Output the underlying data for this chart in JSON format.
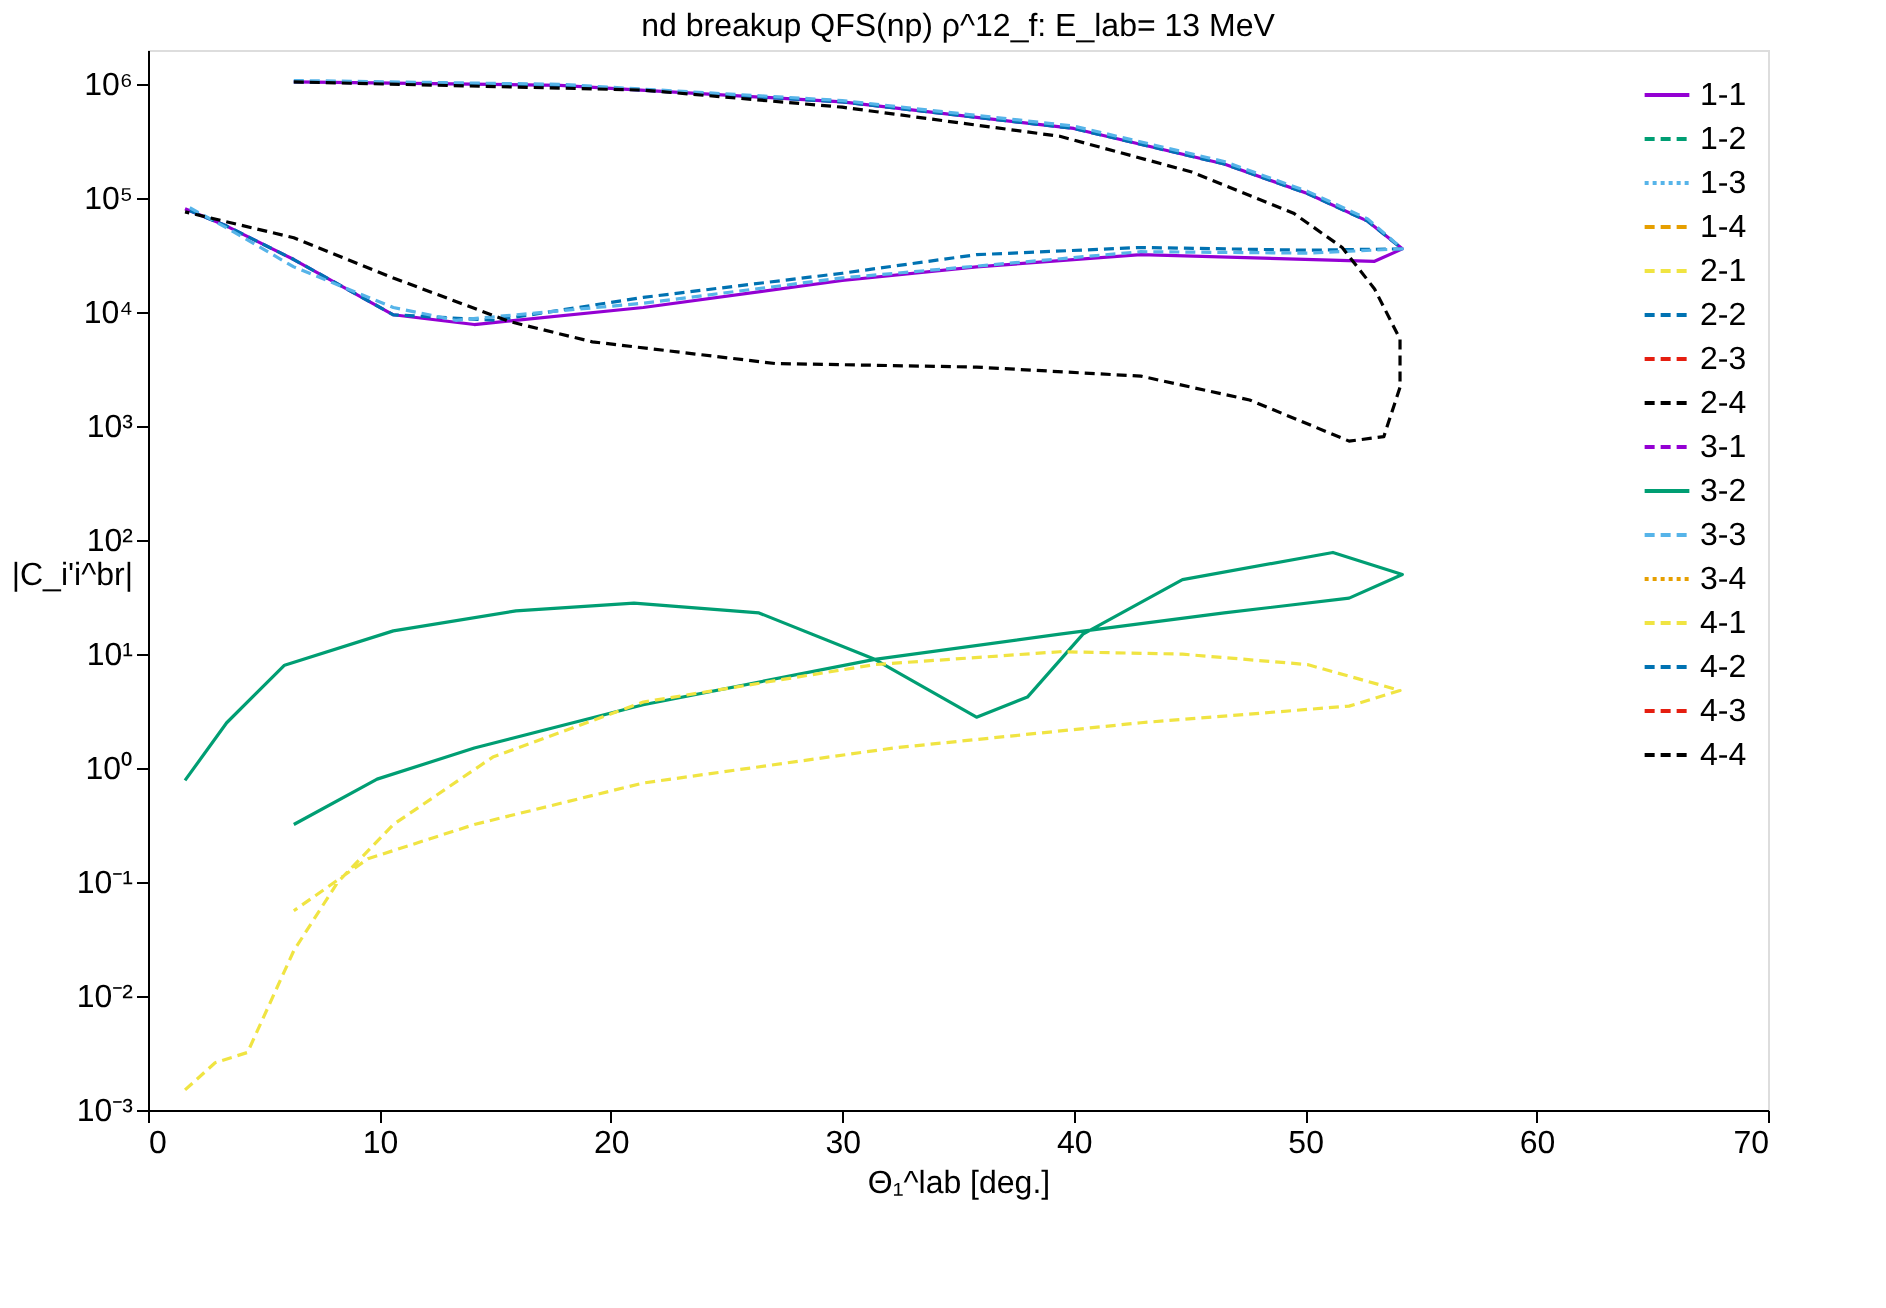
{
  "chart_data": {
    "type": "line",
    "title": "nd breakup QFS(np) ρ^12_f: E_lab=   13 MeV",
    "xlabel": "Θ₁^lab [deg.]",
    "ylabel": "|C_i'i^br|",
    "xlim": [
      0,
      70
    ],
    "xticks": [
      0,
      10,
      20,
      30,
      40,
      50,
      60,
      70
    ],
    "ylim": [
      0.001,
      2000000
    ],
    "log": "y",
    "yticks": [
      {
        "value": 0.001,
        "label": "10⁻³"
      },
      {
        "value": 0.01,
        "label": "10⁻²"
      },
      {
        "value": 0.1,
        "label": "10⁻¹"
      },
      {
        "value": 1,
        "label": "10⁰"
      },
      {
        "value": 10,
        "label": "10¹"
      },
      {
        "value": 100,
        "label": "10²"
      },
      {
        "value": 1000,
        "label": "10³"
      },
      {
        "value": 10000,
        "label": "10⁴"
      },
      {
        "value": 100000,
        "label": "10⁵"
      },
      {
        "value": 1000000,
        "label": "10⁶"
      }
    ],
    "grid": false,
    "legend": "top right",
    "marker": "none",
    "series": [
      {
        "name": "1-1",
        "color": "#9400d3",
        "line_style": "solid",
        "x": [
          6.3,
          17.8,
          30,
          40,
          46.5,
          50.1,
          52.7,
          54.2,
          53,
          42.9,
          35.8,
          30,
          21.4,
          14.1,
          10.6,
          6.3,
          3.4,
          1.6
        ],
        "values": [
          1050000,
          980000,
          700000,
          410000,
          200000,
          110000,
          63000,
          36000,
          28000,
          32000,
          25000,
          19000,
          11000,
          7800,
          9500,
          29000,
          57000,
          81000
        ]
      },
      {
        "name": "1-2",
        "color": "#009e73",
        "line_style": "dashed"
      },
      {
        "name": "1-3",
        "color": "#56b4e9",
        "line_style": "dotted"
      },
      {
        "name": "1-4",
        "color": "#e69f00",
        "line_style": "dashed"
      },
      {
        "name": "2-1",
        "color": "#f0e442",
        "line_style": "dashed"
      },
      {
        "name": "2-2",
        "color": "#0072b2",
        "line_style": "dashed",
        "x": [
          6.3,
          17.8,
          30,
          40,
          46.5,
          50.1,
          52.7,
          54.2,
          50.1,
          42.9,
          35.8,
          30,
          21.4,
          15,
          10.6,
          6.3,
          3.4,
          1.6
        ],
        "values": [
          1050000,
          980000,
          700000,
          410000,
          200000,
          110000,
          63000,
          36000,
          35000,
          37000,
          32000,
          22000,
          13500,
          8500,
          9500,
          29000,
          57000,
          81000
        ]
      },
      {
        "name": "2-3",
        "color": "#e51e10",
        "line_style": "dashed"
      },
      {
        "name": "2-4",
        "color": "#000000",
        "line_style": "dashed"
      },
      {
        "name": "3-1",
        "color": "#9400d3",
        "line_style": "dashed"
      },
      {
        "name": "3-2",
        "color": "#009e73",
        "line_style": "solid",
        "x": [
          1.6,
          3.4,
          5.9,
          10.6,
          15.9,
          21,
          26.4,
          31.4,
          35.8,
          38,
          40.4,
          44.7,
          51.2,
          54.2,
          51.9,
          46.5,
          39.4,
          31.4,
          21.4,
          14.1,
          9.9,
          6.3
        ],
        "values": [
          0.78,
          2.5,
          8,
          16,
          24,
          28,
          23,
          9,
          2.8,
          4.2,
          15,
          45,
          78,
          50,
          31,
          23,
          15,
          9,
          3.6,
          1.5,
          0.8,
          0.32
        ]
      },
      {
        "name": "3-3",
        "color": "#56b4e9",
        "line_style": "dashed",
        "x": [
          6.3,
          17.8,
          30,
          40,
          46.5,
          50.1,
          52.7,
          54.2,
          50.1,
          42.9,
          30,
          21.4,
          13.3,
          10.6,
          6.3,
          3.4,
          1.6
        ],
        "values": [
          1080000,
          1000000,
          720000,
          430000,
          210000,
          115000,
          66000,
          36000,
          33000,
          34000,
          20000,
          12000,
          8500,
          11000,
          25000,
          55000,
          87000
        ]
      },
      {
        "name": "3-4",
        "color": "#e69f00",
        "line_style": "dotted"
      },
      {
        "name": "4-1",
        "color": "#f0e442",
        "line_style": "dashed",
        "x": [
          1.6,
          2.9,
          4.3,
          6.3,
          8.2,
          10.6,
          14.9,
          21.4,
          31.4,
          39.4,
          44.7,
          50.1,
          54.1,
          51.9,
          42.9,
          32.2,
          21.4,
          14.1,
          9.5,
          6.3
        ],
        "values": [
          0.0015,
          0.0026,
          0.0032,
          0.025,
          0.1,
          0.32,
          1.25,
          3.8,
          8.1,
          10.5,
          10,
          8.1,
          4.8,
          3.5,
          2.5,
          1.5,
          0.74,
          0.32,
          0.16,
          0.056
        ]
      },
      {
        "name": "4-2",
        "color": "#0072b2",
        "line_style": "dashed"
      },
      {
        "name": "4-3",
        "color": "#e51e10",
        "line_style": "dashed"
      },
      {
        "name": "4-4",
        "color": "#000000",
        "line_style": "dashed",
        "x": [
          6.3,
          21.4,
          30,
          39.4,
          45.1,
          49.5,
          51.6,
          53,
          54.1,
          54.1,
          53.4,
          51.9,
          47.6,
          42.9,
          35.8,
          27.1,
          19.2,
          15.6,
          10.6,
          6.3,
          1.6
        ],
        "values": [
          1050000,
          890000,
          630000,
          350000,
          170000,
          74000,
          37000,
          16000,
          5800,
          2200,
          810,
          740,
          1700,
          2750,
          3300,
          3550,
          5500,
          8300,
          20000,
          45000,
          76000
        ]
      }
    ]
  }
}
